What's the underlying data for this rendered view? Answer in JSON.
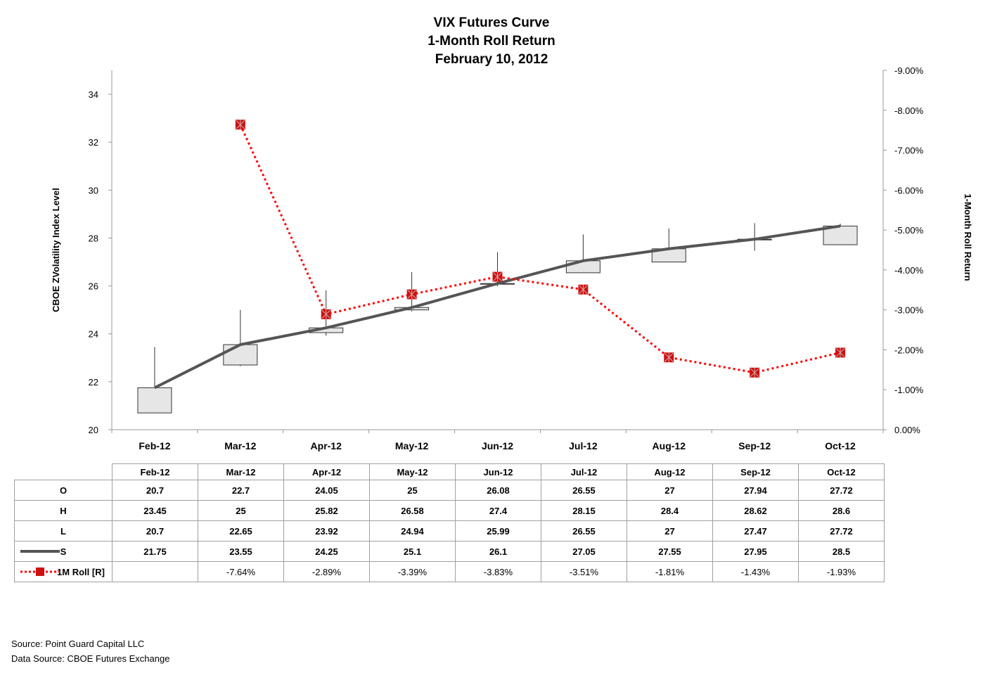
{
  "chart_data": {
    "type": "candlestick-line",
    "title": [
      "VIX Futures Curve",
      "1-Month Roll Return",
      "February 10, 2012"
    ],
    "ylabel_left": "CBOE ZVolatility Index Level",
    "ylabel_right": "1-Month Roll Return",
    "ylim_left": [
      20,
      35
    ],
    "yticks_left": [
      "20",
      "22",
      "24",
      "26",
      "28",
      "30",
      "32",
      "34"
    ],
    "ylim_right_pct": [
      0,
      -9
    ],
    "yticks_right": [
      "0.00%",
      "-1.00%",
      "-2.00%",
      "-3.00%",
      "-4.00%",
      "-5.00%",
      "-6.00%",
      "-7.00%",
      "-8.00%",
      "-9.00%"
    ],
    "categories": [
      "Feb-12",
      "Mar-12",
      "Apr-12",
      "May-12",
      "Jun-12",
      "Jul-12",
      "Aug-12",
      "Sep-12",
      "Oct-12"
    ],
    "open": [
      20.7,
      22.7,
      24.05,
      25,
      26.08,
      26.55,
      27,
      27.94,
      27.72
    ],
    "high": [
      23.45,
      25,
      25.82,
      26.58,
      27.4,
      28.15,
      28.4,
      28.62,
      28.6
    ],
    "low": [
      20.7,
      22.65,
      23.92,
      24.94,
      25.99,
      26.55,
      27,
      27.47,
      27.72
    ],
    "settle": [
      21.75,
      23.55,
      24.25,
      25.1,
      26.1,
      27.05,
      27.55,
      27.95,
      28.5
    ],
    "roll_pct": [
      null,
      -7.64,
      -2.89,
      -3.39,
      -3.83,
      -3.51,
      -1.81,
      -1.43,
      -1.93
    ],
    "colors": {
      "settle_line": "#555555",
      "roll_line": "#ff0000",
      "roll_marker": "#d01010",
      "candle_fill": "#e6e6e6",
      "candle_stroke": "#333333"
    }
  },
  "table": {
    "header": [
      "Feb-12",
      "Mar-12",
      "Apr-12",
      "May-12",
      "Jun-12",
      "Jul-12",
      "Aug-12",
      "Sep-12",
      "Oct-12"
    ],
    "rows": [
      {
        "label": "O",
        "cells": [
          "20.7",
          "22.7",
          "24.05",
          "25",
          "26.08",
          "26.55",
          "27",
          "27.94",
          "27.72"
        ]
      },
      {
        "label": "H",
        "cells": [
          "23.45",
          "25",
          "25.82",
          "26.58",
          "27.4",
          "28.15",
          "28.4",
          "28.62",
          "28.6"
        ]
      },
      {
        "label": "L",
        "cells": [
          "20.7",
          "22.65",
          "23.92",
          "24.94",
          "25.99",
          "26.55",
          "27",
          "27.47",
          "27.72"
        ]
      },
      {
        "label": "S",
        "cells": [
          "21.75",
          "23.55",
          "24.25",
          "25.1",
          "26.1",
          "27.05",
          "27.55",
          "27.95",
          "28.5"
        ]
      },
      {
        "label": "1M Roll [R]",
        "cells": [
          "",
          "-7.64%",
          "-2.89%",
          "-3.39%",
          "-3.83%",
          "-3.51%",
          "-1.81%",
          "-1.43%",
          "-1.93%"
        ]
      }
    ]
  },
  "footer": {
    "source": "Source:  Point Guard Capital LLC",
    "data_source": "Data Source:  CBOE Futures Exchange"
  }
}
